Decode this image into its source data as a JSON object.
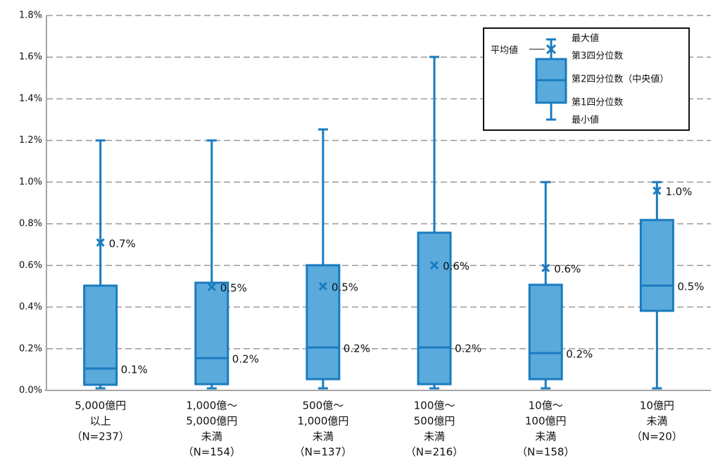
{
  "chart_data": {
    "type": "box",
    "categories": [
      [
        "5,000億円",
        "以上",
        "（N=237）"
      ],
      [
        "1,000億～",
        "5,000億円",
        "未満",
        "（N=154）"
      ],
      [
        "500億～",
        "1,000億円",
        "未満",
        "（N=137）"
      ],
      [
        "100億～",
        "500億円",
        "未満",
        "（N=216）"
      ],
      [
        "10億～",
        "100億円",
        "未満",
        "（N=158）"
      ],
      [
        "10億円",
        "未満",
        "（N=20）"
      ]
    ],
    "min": [
      0.01,
      0.01,
      0.01,
      0.01,
      0.01,
      0.01
    ],
    "q1": [
      0.027,
      0.03,
      0.054,
      0.03,
      0.054,
      0.382
    ],
    "median": [
      0.105,
      0.155,
      0.206,
      0.206,
      0.179,
      0.503
    ],
    "q3": [
      0.503,
      0.517,
      0.601,
      0.757,
      0.507,
      0.818
    ],
    "max": [
      1.2,
      1.2,
      1.253,
      1.601,
      1.0,
      1.0
    ],
    "mean": [
      0.71,
      0.497,
      0.5,
      0.601,
      0.588,
      0.959
    ],
    "mean_value_labels": [
      "0.7%",
      "0.5%",
      "0.5%",
      "0.6%",
      "0.6%",
      "1.0%"
    ],
    "median_value_labels": [
      "0.1%",
      "0.2%",
      "0.2%",
      "0.2%",
      "0.2%",
      "0.5%"
    ],
    "box_color": "#5aaadc",
    "line_color": "#1a7bbf",
    "ylim": [
      0,
      1.8
    ],
    "yticks": [
      {
        "value": 0,
        "label": "0.0%"
      },
      {
        "value": 0.2,
        "label": "0.2%"
      },
      {
        "value": 0.4,
        "label": "0.4%"
      },
      {
        "value": 0.6,
        "label": "0.6%"
      },
      {
        "value": 0.8,
        "label": "0.8%"
      },
      {
        "value": 1.0,
        "label": "1.0%"
      },
      {
        "value": 1.2,
        "label": "1.2%"
      },
      {
        "value": 1.4,
        "label": "1.4%"
      },
      {
        "value": 1.6,
        "label": "1.6%"
      },
      {
        "value": 1.8,
        "label": "1.8%"
      }
    ],
    "grid": true,
    "legend": {
      "max": "最大値",
      "mean": "平均値",
      "q3": "第3四分位数",
      "median": "第2四分位数（中央値）",
      "q1": "第1四分位数",
      "min": "最小値"
    }
  }
}
